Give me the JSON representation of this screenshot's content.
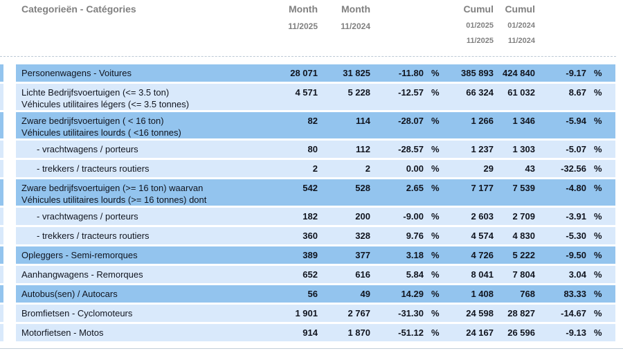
{
  "header": {
    "category_title": "Categorieën - Catégories",
    "month_col_1": {
      "title": "Month",
      "period": "11/2025"
    },
    "month_col_2": {
      "title": "Month",
      "period": "11/2024"
    },
    "cumul_col_1": {
      "title": "Cumul",
      "period_start": "01/2025",
      "period_end": "11/2025"
    },
    "cumul_col_2": {
      "title": "Cumul",
      "period_start": "01/2024",
      "period_end": "11/2024"
    }
  },
  "symbols": {
    "percent": "%"
  },
  "colors": {
    "row_dark": "#93c4ee",
    "row_light": "#d9e9fb",
    "header_text": "#808080",
    "row_text": "#10141e"
  },
  "rows": [
    {
      "labels": [
        "Personenwagens - Voitures"
      ],
      "indent": false,
      "shade": "dark",
      "month_current": "28 071",
      "month_previous": "31 825",
      "month_change": "-11.80",
      "cumul_current": "385 893",
      "cumul_previous": "424 840",
      "cumul_change": "-9.17"
    },
    {
      "labels": [
        "Lichte Bedrijfsvoertuigen (<= 3.5 ton)",
        "Véhicules utilitaires légers (<= 3.5 tonnes)"
      ],
      "indent": false,
      "shade": "light",
      "month_current": "4 571",
      "month_previous": "5 228",
      "month_change": "-12.57",
      "cumul_current": "66 324",
      "cumul_previous": "61 032",
      "cumul_change": "8.67"
    },
    {
      "labels": [
        "Zware bedrijfsvoertuigen ( < 16 ton)",
        "Véhicules utilitaires lourds ( <16 tonnes)"
      ],
      "indent": false,
      "shade": "dark",
      "month_current": "82",
      "month_previous": "114",
      "month_change": "-28.07",
      "cumul_current": "1 266",
      "cumul_previous": "1 346",
      "cumul_change": "-5.94"
    },
    {
      "labels": [
        "- vrachtwagens / porteurs"
      ],
      "indent": true,
      "shade": "light",
      "month_current": "80",
      "month_previous": "112",
      "month_change": "-28.57",
      "cumul_current": "1 237",
      "cumul_previous": "1 303",
      "cumul_change": "-5.07"
    },
    {
      "labels": [
        "- trekkers / tracteurs routiers"
      ],
      "indent": true,
      "shade": "light",
      "month_current": "2",
      "month_previous": "2",
      "month_change": "0.00",
      "cumul_current": "29",
      "cumul_previous": "43",
      "cumul_change": "-32.56"
    },
    {
      "labels": [
        "Zware bedrijfsvoertuigen (>= 16 ton) waarvan",
        "Véhicules utilitaires lourds (>= 16 tonnes) dont"
      ],
      "indent": false,
      "shade": "dark",
      "month_current": "542",
      "month_previous": "528",
      "month_change": "2.65",
      "cumul_current": "7 177",
      "cumul_previous": "7 539",
      "cumul_change": "-4.80"
    },
    {
      "labels": [
        "- vrachtwagens / porteurs"
      ],
      "indent": true,
      "shade": "light",
      "month_current": "182",
      "month_previous": "200",
      "month_change": "-9.00",
      "cumul_current": "2 603",
      "cumul_previous": "2 709",
      "cumul_change": "-3.91"
    },
    {
      "labels": [
        "- trekkers / tracteurs routiers"
      ],
      "indent": true,
      "shade": "light",
      "month_current": "360",
      "month_previous": "328",
      "month_change": "9.76",
      "cumul_current": "4 574",
      "cumul_previous": "4 830",
      "cumul_change": "-5.30"
    },
    {
      "labels": [
        "Opleggers - Semi-remorques"
      ],
      "indent": false,
      "shade": "dark",
      "month_current": "389",
      "month_previous": "377",
      "month_change": "3.18",
      "cumul_current": "4 726",
      "cumul_previous": "5 222",
      "cumul_change": "-9.50"
    },
    {
      "labels": [
        "Aanhangwagens - Remorques"
      ],
      "indent": false,
      "shade": "light",
      "month_current": "652",
      "month_previous": "616",
      "month_change": "5.84",
      "cumul_current": "8 041",
      "cumul_previous": "7 804",
      "cumul_change": "3.04"
    },
    {
      "labels": [
        "Autobus(sen) / Autocars"
      ],
      "indent": false,
      "shade": "dark",
      "month_current": "56",
      "month_previous": "49",
      "month_change": "14.29",
      "cumul_current": "1 408",
      "cumul_previous": "768",
      "cumul_change": "83.33"
    },
    {
      "labels": [
        "Bromfietsen - Cyclomoteurs"
      ],
      "indent": false,
      "shade": "light",
      "month_current": "1 901",
      "month_previous": "2 767",
      "month_change": "-31.30",
      "cumul_current": "24 598",
      "cumul_previous": "28 827",
      "cumul_change": "-14.67"
    },
    {
      "labels": [
        "Motorfietsen - Motos"
      ],
      "indent": false,
      "shade": "light",
      "month_current": "914",
      "month_previous": "1 870",
      "month_change": "-51.12",
      "cumul_current": "24 167",
      "cumul_previous": "26 596",
      "cumul_change": "-9.13"
    }
  ]
}
